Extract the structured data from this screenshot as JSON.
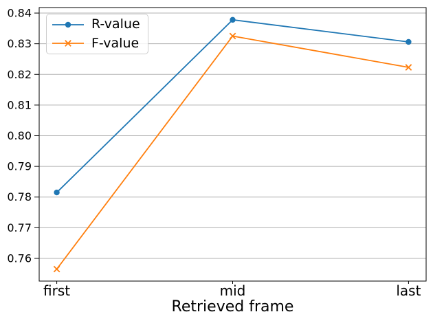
{
  "chart_data": {
    "type": "line",
    "categories": [
      "first",
      "mid",
      "last"
    ],
    "series": [
      {
        "name": "R-value",
        "color": "#1f77b4",
        "marker": "circle",
        "values": [
          0.7815,
          0.8378,
          0.8306
        ]
      },
      {
        "name": "F-value",
        "color": "#ff7f0e",
        "marker": "x",
        "values": [
          0.7565,
          0.8325,
          0.8223
        ]
      }
    ],
    "title": "",
    "xlabel": "Retrieved frame",
    "ylabel": "",
    "xlim": [
      -0.1,
      2.1
    ],
    "ylim": [
      0.7526,
      0.8418
    ],
    "yticks": [
      0.76,
      0.77,
      0.78,
      0.79,
      0.8,
      0.81,
      0.82,
      0.83,
      0.84
    ],
    "ytick_labels": [
      "0.76",
      "0.77",
      "0.78",
      "0.79",
      "0.80",
      "0.81",
      "0.82",
      "0.83",
      "0.84"
    ],
    "grid": "horizontal",
    "grid_color": "#b0b0b0",
    "axis_color": "#000000",
    "background": "#ffffff",
    "legend_position": "upper-left"
  }
}
